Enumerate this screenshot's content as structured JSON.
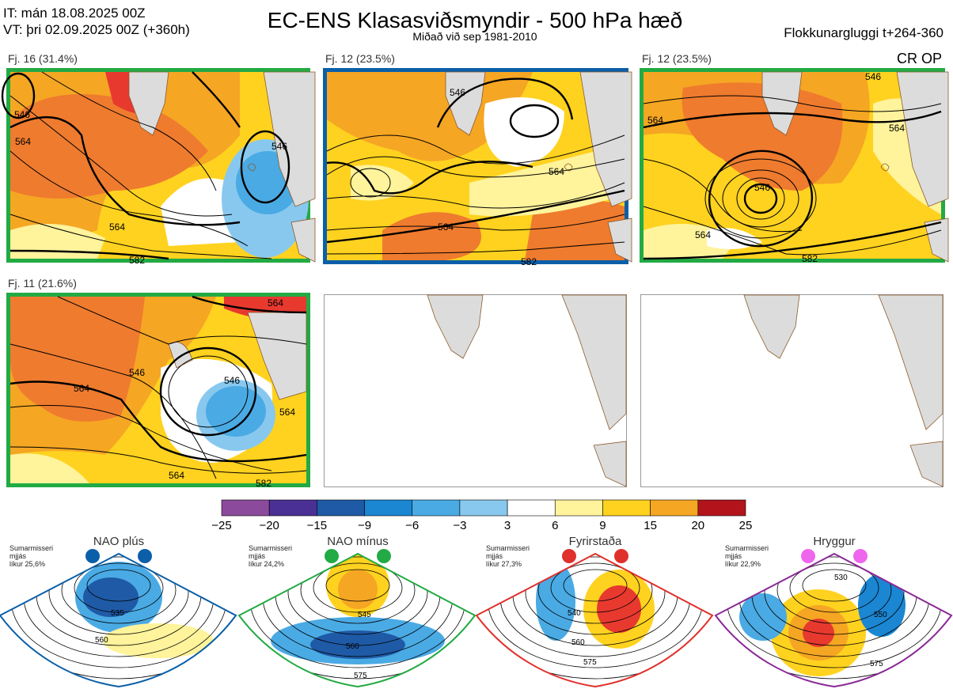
{
  "header": {
    "it_line": "IT: mán 18.08.2025 00Z",
    "vt_line": "VT: þri 02.09.2025 00Z  (+360h)",
    "title": "EC-ENS Klasasviðsmyndir - 500 hPa hæð",
    "subtitle": "Miðað við sep 1981-2010",
    "window": "Flokkunargluggi t+264-360",
    "cr_op": "CR OP"
  },
  "panels": [
    {
      "label": "Fj. 16 (31.4%)",
      "frame_color": "#22aa44",
      "contours": [
        "546",
        "564",
        "564",
        "582",
        "546"
      ]
    },
    {
      "label": "Fj. 12 (23.5%)",
      "frame_color": "#0b5fa8",
      "contours": [
        "564",
        "546",
        "564",
        "582"
      ]
    },
    {
      "label": "Fj. 12 (23.5%)",
      "frame_color": "#22aa44",
      "contours": [
        "564",
        "564",
        "546",
        "564",
        "582",
        "546"
      ]
    },
    {
      "label": "Fj. 11 (21.6%)",
      "frame_color": "#22aa44",
      "contours": [
        "564",
        "564",
        "546",
        "564",
        "582",
        "564",
        "546"
      ]
    }
  ],
  "colorbar": {
    "ticks": [
      "−25",
      "−20",
      "−15",
      "−9",
      "−6",
      "−3",
      "3",
      "6",
      "9",
      "15",
      "20",
      "25"
    ],
    "colors": [
      "#8c4a9c",
      "#4a2f94",
      "#1f5aa6",
      "#1b86d2",
      "#4aaae4",
      "#88c8ee",
      "#ffffff",
      "#fff39b",
      "#ffd21f",
      "#f5a623",
      "#ef7b2e",
      "#e8392f",
      "#b3141c"
    ]
  },
  "regimes": [
    {
      "name": "NAO plús",
      "text": [
        "Sumarmisseri",
        "mjjás",
        "líkur 25,6%"
      ],
      "color": "#0b5fa8",
      "dot_color": "#0b5fa8",
      "contours": [
        "535",
        "560"
      ]
    },
    {
      "name": "NAO mínus",
      "text": [
        "Sumarmisseri",
        "mjjás",
        "líkur 24,2%"
      ],
      "color": "#22aa44",
      "dot_color": "#22aa44",
      "contours": [
        "545",
        "560",
        "575"
      ]
    },
    {
      "name": "Fyrirstaða",
      "text": [
        "Sumarmisseri",
        "mjjás",
        "líkur 27,3%"
      ],
      "color": "#e0302c",
      "dot_color": "#e0302c",
      "contours": [
        "540",
        "560",
        "575"
      ]
    },
    {
      "name": "Hryggur",
      "text": [
        "Sumarmisseri",
        "mjjás",
        "líkur 22,9%"
      ],
      "color": "#8a2a96",
      "dot_color": "#ee66ee",
      "contours": [
        "530",
        "550",
        "575"
      ]
    }
  ]
}
